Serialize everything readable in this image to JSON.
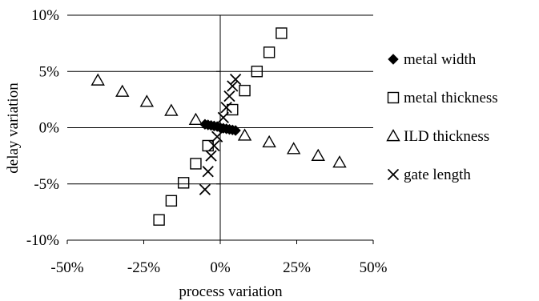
{
  "chart_data": {
    "type": "scatter",
    "title": "",
    "xlabel": "process variation",
    "ylabel": "delay variation",
    "xlim": [
      -0.5,
      0.5
    ],
    "ylim": [
      -0.1,
      0.1
    ],
    "x_ticks": [
      -0.5,
      -0.25,
      0,
      0.25,
      0.5
    ],
    "x_tick_labels": [
      "-50%",
      "-25%",
      "0%",
      "25%",
      "50%"
    ],
    "y_ticks": [
      -0.1,
      -0.05,
      0,
      0.05,
      0.1
    ],
    "y_tick_labels": [
      "-10%",
      "-5%",
      "0%",
      "5%",
      "10%"
    ],
    "grid": "horizontal",
    "legend_position": "right",
    "series": [
      {
        "name": "metal width",
        "marker": "filled-diamond",
        "points": [
          [
            -0.05,
            0.003
          ],
          [
            -0.04,
            0.0025
          ],
          [
            -0.03,
            0.002
          ],
          [
            -0.02,
            0.0015
          ],
          [
            -0.01,
            0.001
          ],
          [
            0.0,
            0.0
          ],
          [
            0.01,
            -0.0005
          ],
          [
            0.02,
            -0.001
          ],
          [
            0.03,
            -0.0015
          ],
          [
            0.04,
            -0.002
          ],
          [
            0.05,
            -0.0025
          ]
        ]
      },
      {
        "name": "metal thickness",
        "marker": "open-square",
        "points": [
          [
            -0.2,
            -0.082
          ],
          [
            -0.16,
            -0.065
          ],
          [
            -0.12,
            -0.049
          ],
          [
            -0.08,
            -0.032
          ],
          [
            -0.04,
            -0.016
          ],
          [
            0.04,
            0.016
          ],
          [
            0.08,
            0.033
          ],
          [
            0.12,
            0.05
          ],
          [
            0.16,
            0.067
          ],
          [
            0.2,
            0.084
          ]
        ]
      },
      {
        "name": "ILD thickness",
        "marker": "open-triangle",
        "points": [
          [
            -0.4,
            0.042
          ],
          [
            -0.32,
            0.032
          ],
          [
            -0.24,
            0.023
          ],
          [
            -0.16,
            0.015
          ],
          [
            -0.08,
            0.007
          ],
          [
            0.08,
            -0.007
          ],
          [
            0.16,
            -0.013
          ],
          [
            0.24,
            -0.019
          ],
          [
            0.32,
            -0.025
          ],
          [
            0.39,
            -0.031
          ]
        ]
      },
      {
        "name": "gate length",
        "marker": "x",
        "points": [
          [
            -0.05,
            -0.055
          ],
          [
            -0.04,
            -0.039
          ],
          [
            -0.03,
            -0.025
          ],
          [
            -0.02,
            -0.016
          ],
          [
            -0.01,
            -0.008
          ],
          [
            0.01,
            0.009
          ],
          [
            0.02,
            0.018
          ],
          [
            0.03,
            0.028
          ],
          [
            0.04,
            0.037
          ],
          [
            0.05,
            0.043
          ]
        ]
      }
    ]
  }
}
